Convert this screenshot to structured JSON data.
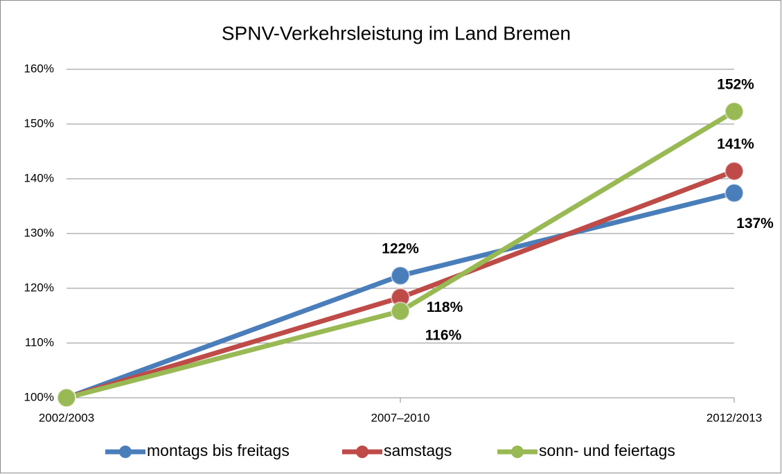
{
  "chart_data": {
    "type": "line",
    "title": "SPNV-Verkehrsleistung im Land Bremen",
    "categories": [
      "2002/2003",
      "2007–2010",
      "2012/2013"
    ],
    "series": [
      {
        "name": "montags bis freitags",
        "color": "#4a7ebb",
        "values": [
          100,
          122.3,
          137.4
        ],
        "value_labels": [
          null,
          "122%",
          "137%"
        ]
      },
      {
        "name": "samstags",
        "color": "#be4b48",
        "values": [
          100,
          118.3,
          141.4
        ],
        "value_labels": [
          null,
          "118%",
          "141%"
        ]
      },
      {
        "name": "sonn- und feiertags",
        "color": "#98b954",
        "values": [
          100,
          115.8,
          152.3
        ],
        "value_labels": [
          null,
          "116%",
          "152%"
        ]
      }
    ],
    "ylim": [
      100,
      160
    ],
    "yticks": [
      {
        "value": 100,
        "label": "100%"
      },
      {
        "value": 110,
        "label": "110%"
      },
      {
        "value": 120,
        "label": "120%"
      },
      {
        "value": 130,
        "label": "130%"
      },
      {
        "value": 140,
        "label": "140%"
      },
      {
        "value": 150,
        "label": "150%"
      },
      {
        "value": 160,
        "label": "160%"
      }
    ],
    "grid": true,
    "legend": "bottom"
  }
}
